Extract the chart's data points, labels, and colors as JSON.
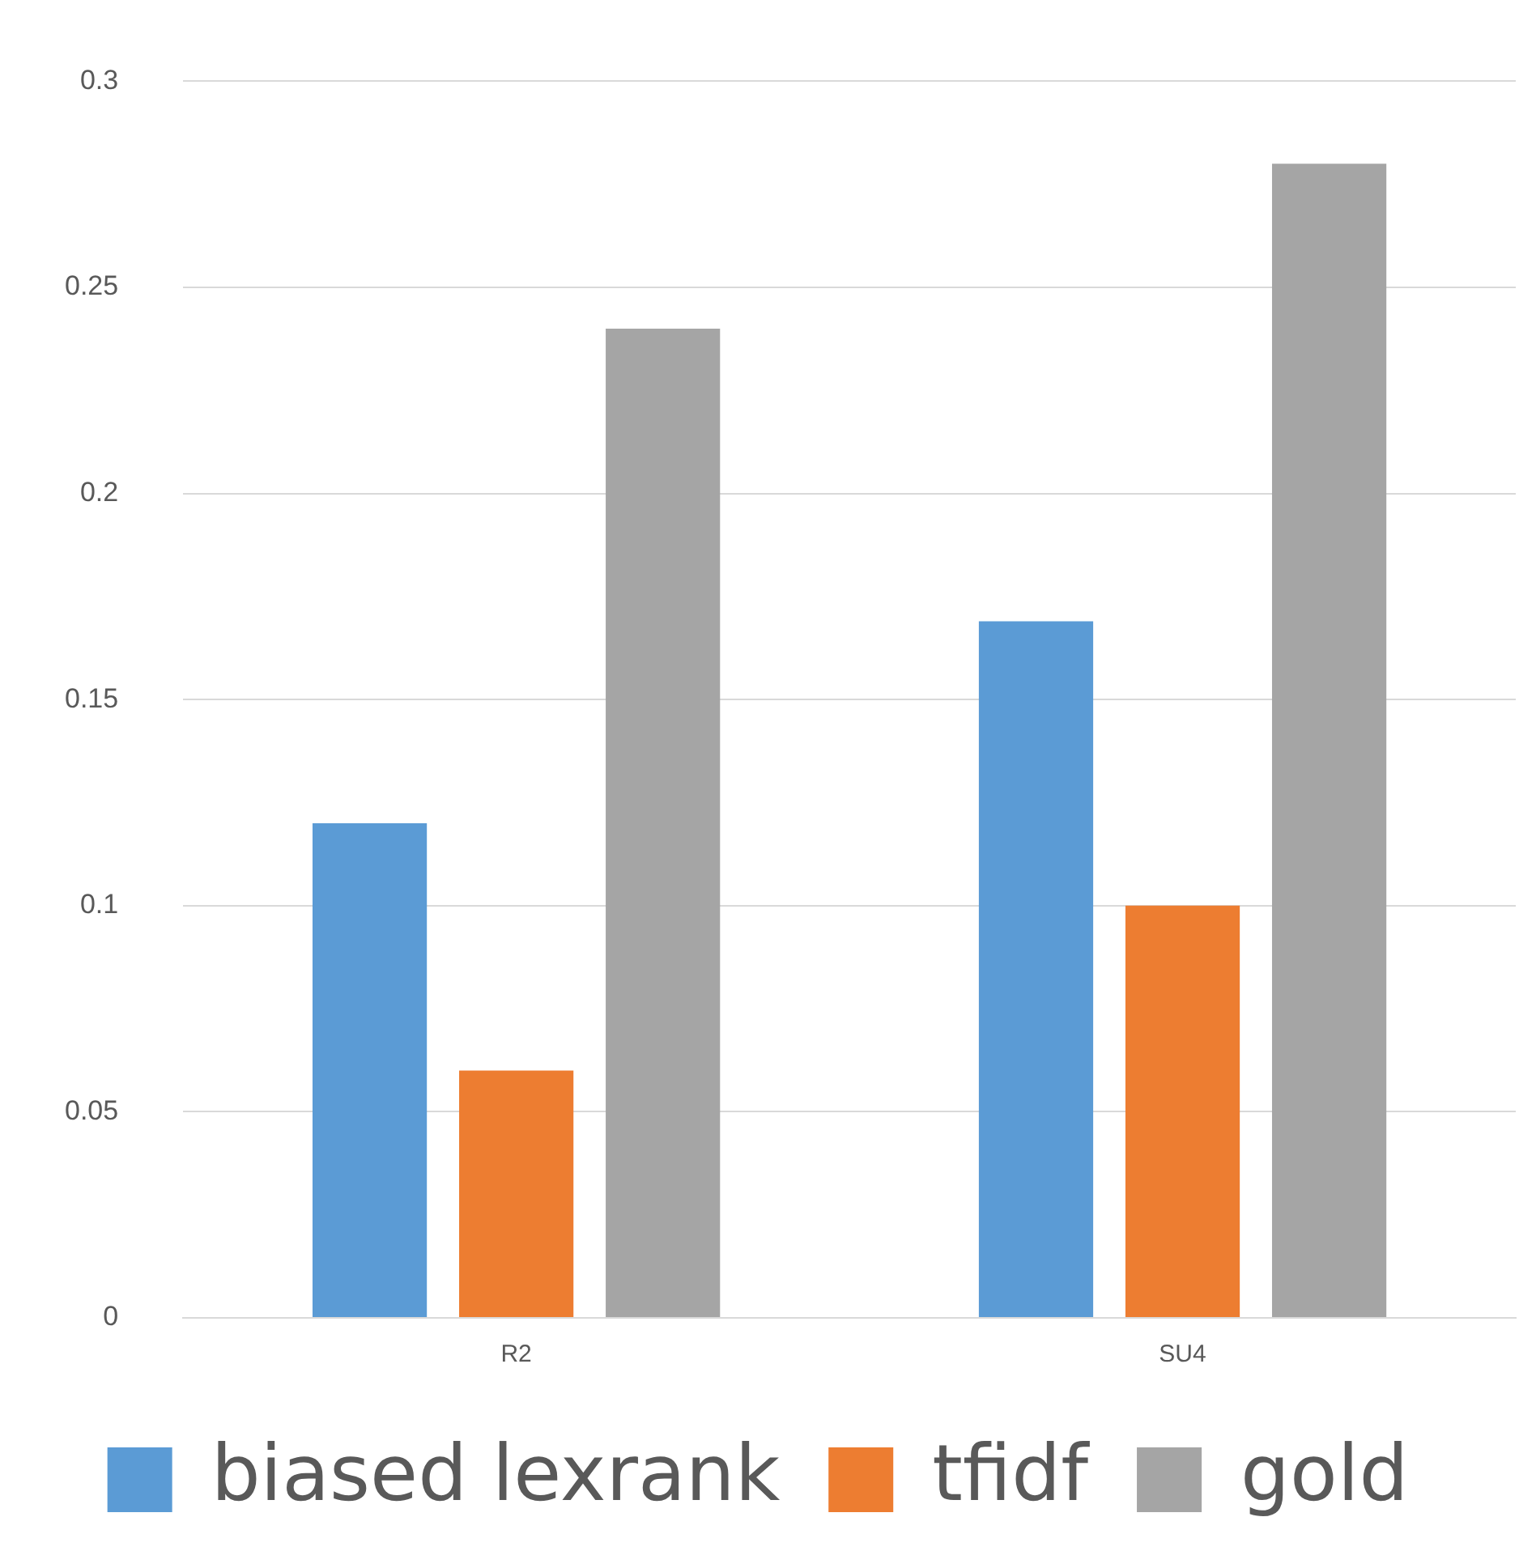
{
  "chart_data": {
    "type": "bar",
    "categories": [
      "R2",
      "SU4"
    ],
    "series": [
      {
        "name": "biased lexrank",
        "color": "#5b9bd5",
        "values": [
          0.12,
          0.169
        ]
      },
      {
        "name": "tfidf",
        "color": "#ed7d31",
        "values": [
          0.06,
          0.1
        ]
      },
      {
        "name": "gold",
        "color": "#a5a5a5",
        "values": [
          0.24,
          0.28
        ]
      }
    ],
    "ylim": [
      0,
      0.3
    ],
    "yticks": [
      0,
      0.05,
      0.1,
      0.15,
      0.2,
      0.25,
      0.3
    ],
    "grid": "y",
    "legend": "bottom"
  }
}
